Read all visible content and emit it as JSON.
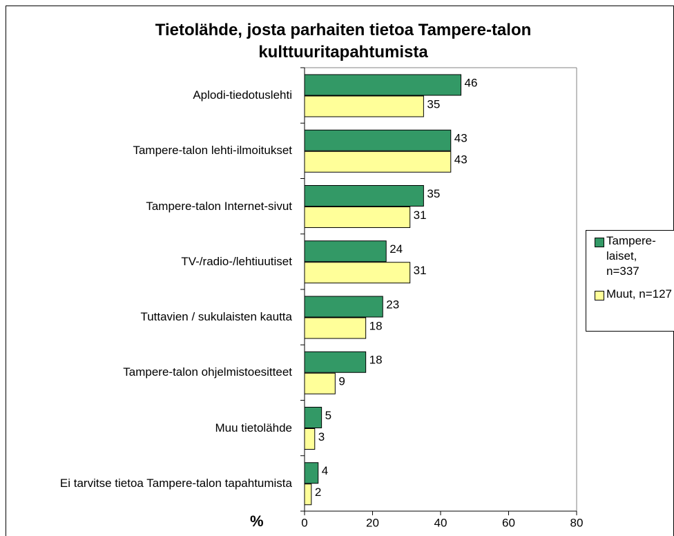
{
  "chart_data": {
    "type": "hbar",
    "title": "Tietolähde, josta parhaiten tietoa Tampere-talon kulttuuritapahtumista",
    "xlabel": "%",
    "categories": [
      "Aplodi-tiedotuslehti",
      "Tampere-talon lehti-ilmoitukset",
      "Tampere-talon Internet-sivut",
      "TV-/radio-/lehtiuutiset",
      "Tuttavien / sukulaisten kautta",
      "Tampere-talon ohjelmistoesitteet",
      "Muu tietolähde",
      "Ei tarvitse tietoa Tampere-talon tapahtumista"
    ],
    "series": [
      {
        "name": "Tampere-laiset, n=337",
        "color": "#339966",
        "values": [
          46,
          43,
          35,
          24,
          23,
          18,
          5,
          4
        ]
      },
      {
        "name": "Muut, n=127",
        "color": "#ffff99",
        "values": [
          35,
          43,
          31,
          31,
          18,
          9,
          3,
          2
        ]
      }
    ],
    "xlim": [
      0,
      80
    ],
    "xticks": [
      0,
      20,
      40,
      60,
      80
    ],
    "legend": "right"
  }
}
